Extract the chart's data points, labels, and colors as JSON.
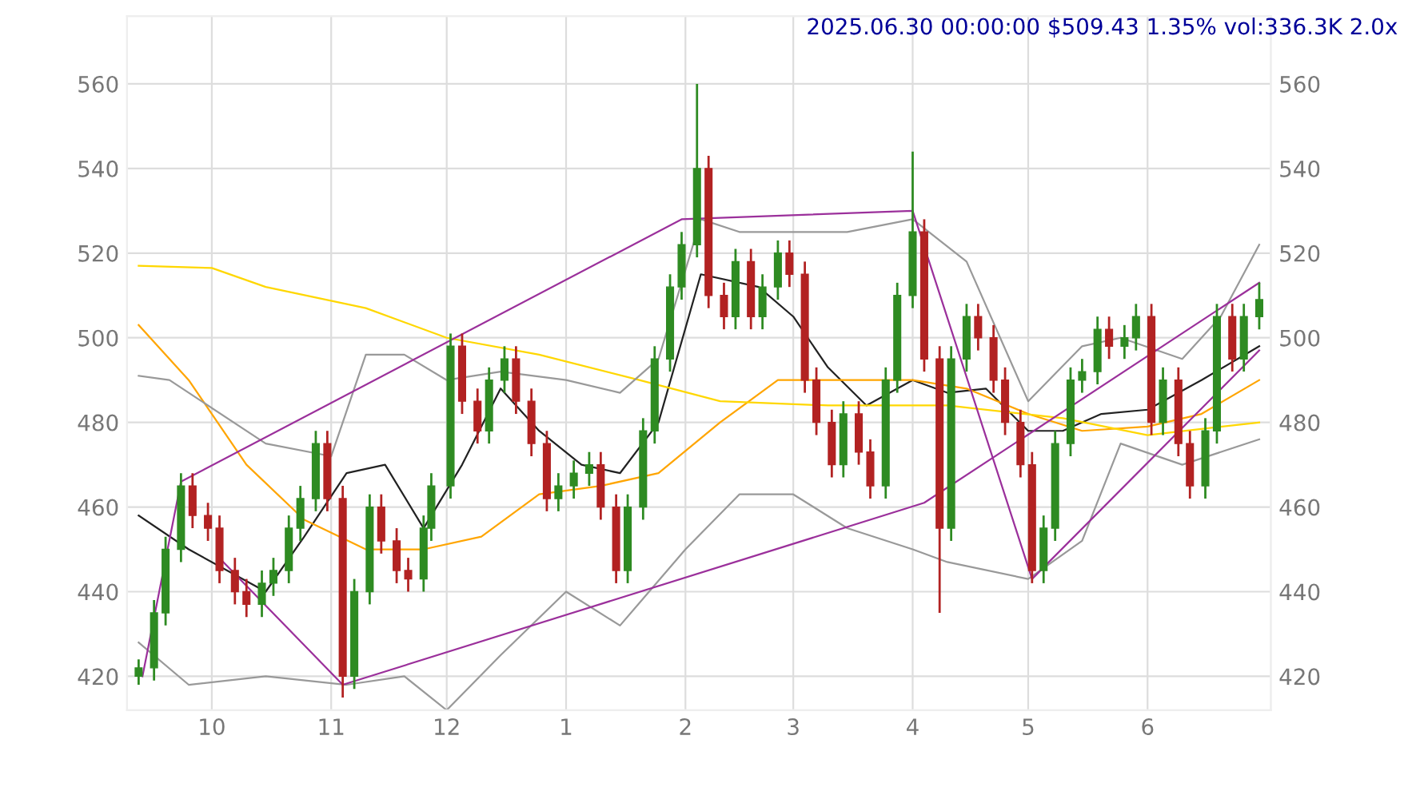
{
  "chart_data": {
    "type": "candlestick",
    "title": "2025.06.30 00:00:00 $509.43 1.35% vol:336.3K 2.0x",
    "xlim": [
      "2024-09-09",
      "2025-07-03"
    ],
    "xticks": [
      {
        "value": "2024-10-01",
        "label": "10"
      },
      {
        "value": "2024-11-01",
        "label": "11"
      },
      {
        "value": "2024-12-01",
        "label": "12"
      },
      {
        "value": "2025-01-01",
        "label": "1"
      },
      {
        "value": "2025-02-01",
        "label": "2"
      },
      {
        "value": "2025-03-01",
        "label": "3"
      },
      {
        "value": "2025-04-01",
        "label": "4"
      },
      {
        "value": "2025-05-01",
        "label": "5"
      },
      {
        "value": "2025-06-01",
        "label": "6"
      }
    ],
    "ylim": [
      412,
      576
    ],
    "yticks": [
      420,
      440,
      460,
      480,
      500,
      520,
      540,
      560
    ],
    "y2lim": [
      412,
      576
    ],
    "y2ticks": [
      420,
      440,
      460,
      480,
      500,
      520,
      540,
      560
    ],
    "grid": true,
    "legend": false,
    "series": [
      {
        "x": [
          "2024-09-12",
          "2024-09-16",
          "2024-09-19",
          "2024-09-23",
          "2024-09-26",
          "2024-09-30",
          "2024-10-03",
          "2024-10-07",
          "2024-10-10",
          "2024-10-14",
          "2024-10-17",
          "2024-10-21",
          "2024-10-24",
          "2024-10-28",
          "2024-10-31",
          "2024-11-04",
          "2024-11-07",
          "2024-11-11",
          "2024-11-14",
          "2024-11-18",
          "2024-11-21",
          "2024-11-25",
          "2024-11-27",
          "2024-12-02",
          "2024-12-05",
          "2024-12-09",
          "2024-12-12",
          "2024-12-16",
          "2024-12-19",
          "2024-12-23",
          "2024-12-27",
          "2024-12-30",
          "2025-01-03",
          "2025-01-07",
          "2025-01-10",
          "2025-01-14",
          "2025-01-17",
          "2025-01-21",
          "2025-01-24",
          "2025-01-28",
          "2025-01-31",
          "2025-02-04",
          "2025-02-07",
          "2025-02-11",
          "2025-02-14",
          "2025-02-18",
          "2025-02-21",
          "2025-02-25",
          "2025-02-28",
          "2025-03-04",
          "2025-03-07",
          "2025-03-11",
          "2025-03-14",
          "2025-03-18",
          "2025-03-21",
          "2025-03-25",
          "2025-03-28",
          "2025-04-01",
          "2025-04-04",
          "2025-04-08",
          "2025-04-11",
          "2025-04-15",
          "2025-04-18",
          "2025-04-22",
          "2025-04-25",
          "2025-04-29",
          "2025-05-02",
          "2025-05-05",
          "2025-05-08",
          "2025-05-12",
          "2025-05-15",
          "2025-05-19",
          "2025-05-22",
          "2025-05-26",
          "2025-05-29",
          "2025-06-02",
          "2025-06-05",
          "2025-06-09",
          "2025-06-12",
          "2025-06-16",
          "2025-06-19",
          "2025-06-23",
          "2025-06-26",
          "2025-06-30"
        ],
        "ohlc": [
          [
            420,
            424,
            418,
            422
          ],
          [
            422,
            438,
            419,
            435
          ],
          [
            435,
            453,
            432,
            450
          ],
          [
            450,
            468,
            447,
            465
          ],
          [
            465,
            468,
            455,
            458
          ],
          [
            458,
            461,
            452,
            455
          ],
          [
            455,
            458,
            442,
            445
          ],
          [
            445,
            448,
            437,
            440
          ],
          [
            440,
            443,
            434,
            437
          ],
          [
            437,
            445,
            434,
            442
          ],
          [
            442,
            448,
            439,
            445
          ],
          [
            445,
            458,
            442,
            455
          ],
          [
            455,
            465,
            452,
            462
          ],
          [
            462,
            478,
            459,
            475
          ],
          [
            475,
            478,
            459,
            462
          ],
          [
            462,
            465,
            415,
            420
          ],
          [
            420,
            443,
            417,
            440
          ],
          [
            440,
            463,
            437,
            460
          ],
          [
            460,
            463,
            449,
            452
          ],
          [
            452,
            455,
            442,
            445
          ],
          [
            445,
            448,
            440,
            443
          ],
          [
            443,
            458,
            440,
            455
          ],
          [
            455,
            468,
            452,
            465
          ],
          [
            465,
            501,
            462,
            498
          ],
          [
            498,
            501,
            482,
            485
          ],
          [
            485,
            488,
            475,
            478
          ],
          [
            478,
            493,
            475,
            490
          ],
          [
            490,
            498,
            487,
            495
          ],
          [
            495,
            498,
            482,
            485
          ],
          [
            485,
            488,
            472,
            475
          ],
          [
            475,
            478,
            459,
            462
          ],
          [
            462,
            468,
            459,
            465
          ],
          [
            465,
            471,
            462,
            468
          ],
          [
            468,
            473,
            465,
            470
          ],
          [
            470,
            473,
            457,
            460
          ],
          [
            460,
            463,
            442,
            445
          ],
          [
            445,
            463,
            442,
            460
          ],
          [
            460,
            481,
            457,
            478
          ],
          [
            478,
            498,
            475,
            495
          ],
          [
            495,
            515,
            492,
            512
          ],
          [
            512,
            525,
            509,
            522
          ],
          [
            522,
            560,
            519,
            540
          ],
          [
            540,
            543,
            507,
            510
          ],
          [
            510,
            513,
            502,
            505
          ],
          [
            505,
            521,
            502,
            518
          ],
          [
            518,
            521,
            502,
            505
          ],
          [
            505,
            515,
            502,
            512
          ],
          [
            512,
            523,
            509,
            520
          ],
          [
            520,
            523,
            512,
            515
          ],
          [
            515,
            518,
            487,
            490
          ],
          [
            490,
            493,
            477,
            480
          ],
          [
            480,
            483,
            467,
            470
          ],
          [
            470,
            485,
            467,
            482
          ],
          [
            482,
            485,
            470,
            473
          ],
          [
            473,
            476,
            462,
            465
          ],
          [
            465,
            493,
            462,
            490
          ],
          [
            490,
            513,
            487,
            510
          ],
          [
            510,
            544,
            507,
            525
          ],
          [
            525,
            528,
            492,
            495
          ],
          [
            495,
            498,
            435,
            455
          ],
          [
            455,
            498,
            452,
            495
          ],
          [
            495,
            508,
            492,
            505
          ],
          [
            505,
            508,
            497,
            500
          ],
          [
            500,
            503,
            487,
            490
          ],
          [
            490,
            493,
            477,
            480
          ],
          [
            480,
            483,
            467,
            470
          ],
          [
            470,
            473,
            442,
            445
          ],
          [
            445,
            458,
            442,
            455
          ],
          [
            455,
            478,
            452,
            475
          ],
          [
            475,
            493,
            472,
            490
          ],
          [
            490,
            495,
            487,
            492
          ],
          [
            492,
            505,
            489,
            502
          ],
          [
            502,
            505,
            495,
            498
          ],
          [
            498,
            503,
            495,
            500
          ],
          [
            500,
            508,
            497,
            505
          ],
          [
            505,
            508,
            477,
            480
          ],
          [
            480,
            493,
            477,
            490
          ],
          [
            490,
            493,
            472,
            475
          ],
          [
            475,
            478,
            462,
            465
          ],
          [
            465,
            481,
            462,
            478
          ],
          [
            478,
            508,
            475,
            505
          ],
          [
            505,
            508,
            492,
            495
          ],
          [
            495,
            508,
            492,
            505
          ],
          [
            505,
            513,
            502,
            509
          ]
        ],
        "colors": [
          "#2e8b22",
          "#2e8b22",
          "#2e8b22",
          "#2e8b22",
          "#b22222",
          "#b22222",
          "#b22222",
          "#b22222",
          "#b22222",
          "#2e8b22",
          "#2e8b22",
          "#2e8b22",
          "#2e8b22",
          "#2e8b22",
          "#b22222",
          "#b22222",
          "#2e8b22",
          "#2e8b22",
          "#b22222",
          "#b22222",
          "#b22222",
          "#2e8b22",
          "#2e8b22",
          "#2e8b22",
          "#b22222",
          "#b22222",
          "#2e8b22",
          "#2e8b22",
          "#b22222",
          "#b22222",
          "#b22222",
          "#2e8b22",
          "#2e8b22",
          "#2e8b22",
          "#b22222",
          "#b22222",
          "#2e8b22",
          "#2e8b22",
          "#2e8b22",
          "#2e8b22",
          "#2e8b22",
          "#2e8b22",
          "#b22222",
          "#b22222",
          "#2e8b22",
          "#b22222",
          "#2e8b22",
          "#2e8b22",
          "#b22222",
          "#b22222",
          "#b22222",
          "#b22222",
          "#2e8b22",
          "#b22222",
          "#b22222",
          "#2e8b22",
          "#2e8b22",
          "#2e8b22",
          "#b22222",
          "#b22222",
          "#2e8b22",
          "#2e8b22",
          "#b22222",
          "#b22222",
          "#b22222",
          "#b22222",
          "#b22222",
          "#2e8b22",
          "#2e8b22",
          "#2e8b22",
          "#2e8b22",
          "#2e8b22",
          "#b22222",
          "#2e8b22",
          "#2e8b22",
          "#b22222",
          "#2e8b22",
          "#b22222",
          "#b22222",
          "#2e8b22",
          "#2e8b22",
          "#b22222",
          "#2e8b22",
          "#2e8b22"
        ]
      },
      {
        "type": "line",
        "color": "#222222",
        "x": [
          "2024-09-12",
          "2024-09-25",
          "2024-10-15",
          "2024-10-25",
          "2024-11-05",
          "2024-11-15",
          "2024-11-25",
          "2024-12-05",
          "2024-12-15",
          "2024-12-25",
          "2025-01-05",
          "2025-01-15",
          "2025-01-25",
          "2025-02-05",
          "2025-02-20",
          "2025-03-01",
          "2025-03-10",
          "2025-03-20",
          "2025-04-01",
          "2025-04-10",
          "2025-04-20",
          "2025-05-01",
          "2025-05-10",
          "2025-05-20",
          "2025-06-01",
          "2025-06-15",
          "2025-06-30"
        ],
        "values": [
          458,
          450,
          440,
          453,
          468,
          470,
          455,
          470,
          488,
          478,
          470,
          468,
          480,
          515,
          512,
          505,
          493,
          484,
          490,
          487,
          488,
          478,
          478,
          482,
          483,
          490,
          498
        ]
      },
      {
        "type": "line",
        "color": "#ffa500",
        "x": [
          "2024-09-12",
          "2024-09-25",
          "2024-10-10",
          "2024-10-25",
          "2024-11-10",
          "2024-11-25",
          "2024-12-10",
          "2024-12-25",
          "2025-01-10",
          "2025-01-25",
          "2025-02-10",
          "2025-02-25",
          "2025-03-15",
          "2025-04-01",
          "2025-04-15",
          "2025-05-01",
          "2025-05-15",
          "2025-06-01",
          "2025-06-15",
          "2025-06-30"
        ],
        "values": [
          503,
          490,
          470,
          457,
          450,
          450,
          453,
          463,
          465,
          468,
          480,
          490,
          490,
          490,
          488,
          482,
          478,
          479,
          482,
          490
        ]
      },
      {
        "type": "line",
        "color": "#ffd700",
        "x": [
          "2024-09-12",
          "2024-10-01",
          "2024-10-15",
          "2024-11-10",
          "2024-12-01",
          "2024-12-25",
          "2025-01-20",
          "2025-02-10",
          "2025-03-10",
          "2025-04-10",
          "2025-05-10",
          "2025-06-01",
          "2025-06-30"
        ],
        "values": [
          517,
          516.5,
          512,
          507,
          500,
          496,
          490,
          485,
          484,
          484,
          481,
          477,
          480
        ]
      },
      {
        "type": "line",
        "color": "#999999",
        "x": [
          "2024-09-12",
          "2024-09-20",
          "2024-10-15",
          "2024-11-01",
          "2024-11-10",
          "2024-11-20",
          "2024-12-01",
          "2024-12-15",
          "2025-01-01",
          "2025-01-15",
          "2025-01-25",
          "2025-02-05",
          "2025-02-15",
          "2025-03-01",
          "2025-03-15",
          "2025-04-01",
          "2025-04-15",
          "2025-05-01",
          "2025-05-15",
          "2025-05-25",
          "2025-06-10",
          "2025-06-20",
          "2025-06-30"
        ],
        "values": [
          491,
          490,
          475,
          472,
          496,
          496,
          490,
          492,
          490,
          487,
          495,
          528,
          525,
          525,
          525,
          528,
          518,
          485,
          498,
          500,
          495,
          505,
          522
        ]
      },
      {
        "type": "line",
        "color": "#999999",
        "x": [
          "2024-09-12",
          "2024-09-25",
          "2024-10-15",
          "2024-11-05",
          "2024-11-20",
          "2024-12-01",
          "2024-12-15",
          "2025-01-01",
          "2025-01-15",
          "2025-02-01",
          "2025-02-15",
          "2025-03-01",
          "2025-03-15",
          "2025-04-01",
          "2025-04-10",
          "2025-05-01",
          "2025-05-15",
          "2025-05-25",
          "2025-06-10",
          "2025-06-30"
        ],
        "values": [
          428,
          418,
          420,
          418,
          420,
          412,
          425,
          440,
          432,
          450,
          463,
          463,
          455,
          450,
          447,
          443,
          452,
          475,
          470,
          476
        ]
      },
      {
        "type": "line",
        "color": "#9b309b",
        "x": [
          "2024-09-13",
          "2024-09-23",
          "2025-01-31",
          "2025-04-01",
          "2025-05-02",
          "2025-06-30"
        ],
        "values": [
          420,
          466,
          528,
          530,
          443,
          497
        ]
      },
      {
        "type": "line",
        "color": "#9b309b",
        "x": [
          "2024-10-04",
          "2024-11-04",
          "2025-04-04",
          "2025-06-30"
        ],
        "values": [
          447,
          418,
          461,
          513
        ]
      }
    ]
  }
}
